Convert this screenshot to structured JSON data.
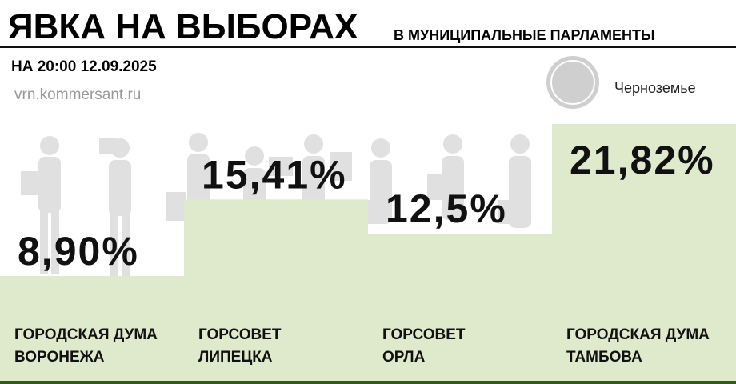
{
  "chart_data": {
    "type": "bar",
    "title": "ЯВКА НА ВЫБОРАХ",
    "subtitle": "В МУНИЦИПАЛЬНЫЕ ПАРЛАМЕНТЫ",
    "note": "НА 20:00 12.09.2025",
    "source": "vrn.kommersant.ru",
    "brand": "Черноземье",
    "categories": [
      "ГОРОДСКАЯ ДУМА\nВОРОНЕЖА",
      "ГОРСОВЕТ\nЛИПЕЦКА",
      "ГОРСОВЕТ\nОРЛА",
      "ГОРОДСКАЯ ДУМА\nТАМБОВА"
    ],
    "values": [
      8.9,
      15.41,
      12.5,
      21.82
    ],
    "value_labels": [
      "8,90%",
      "15,41%",
      "12,5%",
      "21,82%"
    ],
    "color": "#dfe9cb",
    "ylim": [
      0,
      24
    ]
  }
}
